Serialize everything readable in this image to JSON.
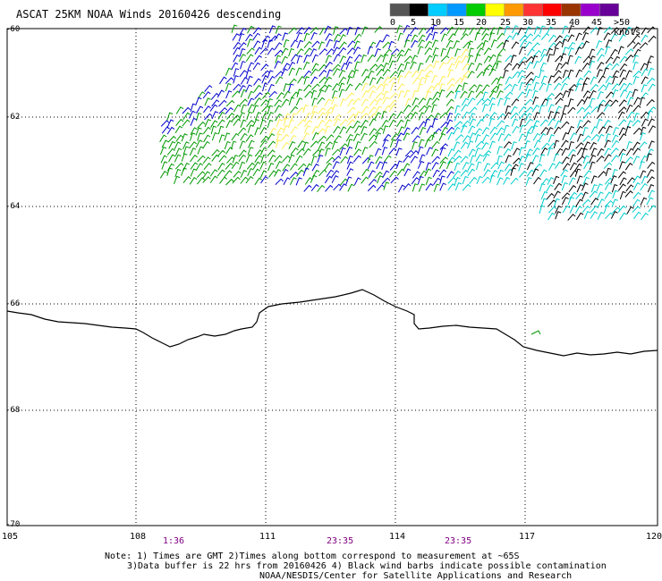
{
  "title": "ASCAT 25KM NOAA Winds 20160426 descending",
  "legend": {
    "labels": [
      "0",
      "5",
      "10",
      "15",
      "20",
      "25",
      "30",
      "35",
      "40",
      "45",
      ">50 knots"
    ],
    "colors": [
      "#555555",
      "#000000",
      "#00ccff",
      "#0099ff",
      "#00cc00",
      "#ffff00",
      "#ff9900",
      "#ff3333",
      "#ff0000",
      "#993300",
      "#9900cc",
      "#660099"
    ]
  },
  "axes": {
    "latitudes": [
      "-60",
      "-62",
      "-64",
      "-66",
      "-68",
      "-70"
    ],
    "longitudes": [
      "105",
      "108",
      "111",
      "114",
      "117",
      "120"
    ]
  },
  "pass_times": [
    "1:36",
    "23:35",
    "23:35"
  ],
  "notes": [
    "Note: 1) Times are GMT 2)Times along bottom correspond to measurement at ~65S",
    "3)Data buffer is 22 hrs from 20160426 4) Black wind barbs indicate possible contamination",
    "NOAA/NESDIS/Center for Satellite Applications and Research"
  ],
  "barb_colors": {
    "blue": "#0000cc",
    "cyan": "#00cccc",
    "green": "#009900",
    "yellow": "#ffee55",
    "black": "#000000"
  }
}
